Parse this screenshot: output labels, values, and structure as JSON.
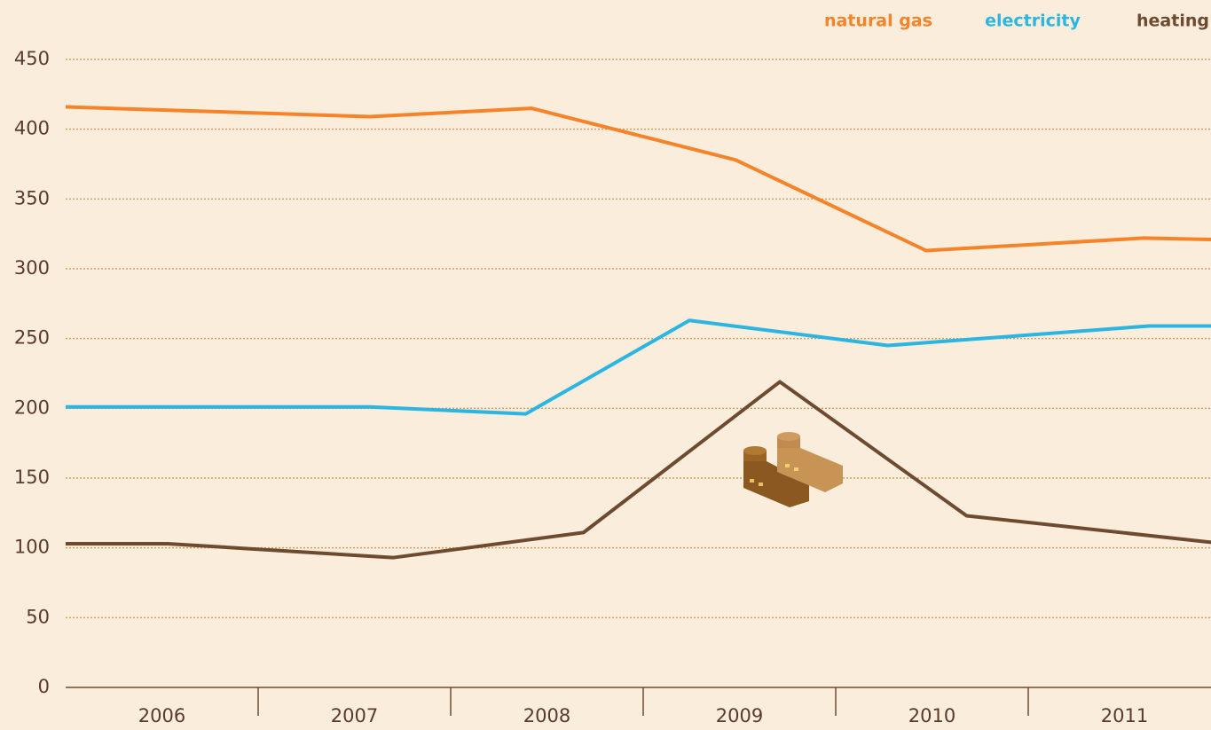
{
  "chart_data": {
    "type": "line",
    "series": [
      {
        "name": "natural gas",
        "color": "#f5832a",
        "x": [
          2006,
          2007.58,
          2008.42,
          2009.48,
          2010.47,
          2011.6,
          2011.95
        ],
        "values": [
          416,
          409,
          415,
          378,
          313,
          322,
          321
        ]
      },
      {
        "name": "electricity",
        "color": "#2bb5e0",
        "x": [
          2006,
          2007.58,
          2008.39,
          2009.24,
          2010.27,
          2011.63,
          2011.95
        ],
        "values": [
          201,
          201,
          196,
          263,
          245,
          259,
          259
        ]
      },
      {
        "name": "heating",
        "color": "#6e4a30",
        "x": [
          2006,
          2006.53,
          2007.7,
          2008.69,
          2009.71,
          2010.68,
          2011.95
        ],
        "values": [
          103,
          103,
          93,
          111,
          219,
          123,
          104
        ]
      }
    ],
    "xlim": [
      2006,
      2012
    ],
    "xticks": [
      {
        "value": 2006.5,
        "label": "2006"
      },
      {
        "value": 2007.5,
        "label": "2007"
      },
      {
        "value": 2008.5,
        "label": "2008"
      },
      {
        "value": 2009.5,
        "label": "2009"
      },
      {
        "value": 2010.5,
        "label": "2010"
      },
      {
        "value": 2011.5,
        "label": "2011"
      }
    ],
    "ylim": [
      0,
      450
    ],
    "yticks": [
      0,
      50,
      100,
      150,
      200,
      250,
      300,
      350,
      400,
      450
    ],
    "grid": true
  }
}
